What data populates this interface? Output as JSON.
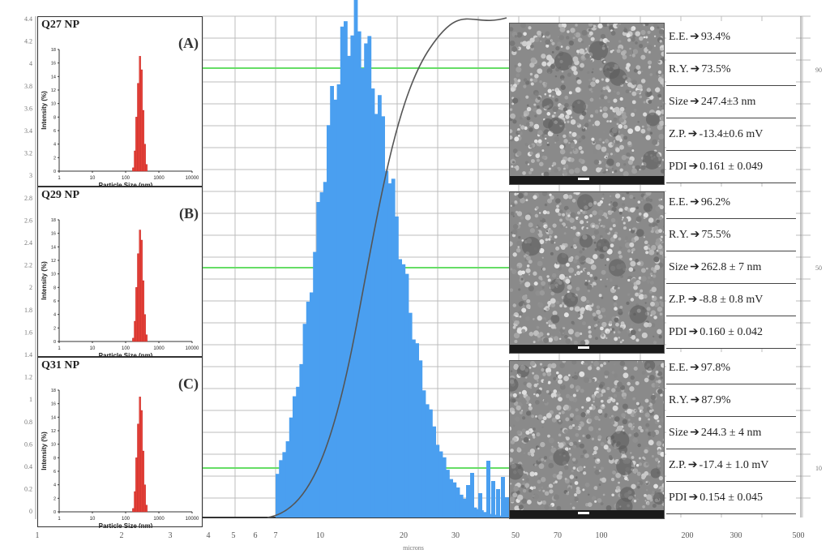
{
  "background_chart": {
    "type": "bar",
    "xlabel": "microns",
    "x_ticks": [
      "4",
      "5",
      "6",
      "7",
      "10",
      "20",
      "30",
      "50",
      "70",
      "100",
      "200",
      "300",
      "500"
    ],
    "left_axis_ticks": [
      "4.4",
      "4.2",
      "4",
      "3.8",
      "3.6",
      "3.4",
      "3.2",
      "3",
      "2.8",
      "2.6",
      "2.4",
      "2.2",
      "2",
      "1.8",
      "1.6",
      "1.4",
      "1.2",
      "1",
      "0.8",
      "0.6",
      "0.4",
      "0.2",
      "0"
    ],
    "right_axis_ticks": [
      "90",
      "50",
      "10"
    ],
    "bottom_left_ticks": [
      "1",
      "2",
      "3"
    ],
    "colors": {
      "bars": "#4a9ff0",
      "cumulative": "#555555",
      "threshold": "#66dd66",
      "grid": "#bcbcbc"
    }
  },
  "chart_data": [
    {
      "type": "bar",
      "title": "Q27 NP",
      "panel_label": "(A)",
      "xlabel": "Particle Size (nm)",
      "ylabel": "Intensity (%)",
      "x_scale": "log",
      "x_ticks": [
        "1",
        "10",
        "100",
        "1000",
        "10000"
      ],
      "y_ticks": [
        "0",
        "2",
        "4",
        "6",
        "8",
        "10",
        "12",
        "14",
        "16",
        "18"
      ],
      "ylim": [
        0,
        18
      ],
      "sizes_nm": [
        160,
        180,
        200,
        225,
        255,
        285,
        320,
        360,
        400
      ],
      "values": [
        0.5,
        3,
        8,
        13,
        17,
        15,
        9,
        4,
        1
      ],
      "color": "#e8443a"
    },
    {
      "type": "bar",
      "title": "Q29 NP",
      "panel_label": "(B)",
      "xlabel": "Particle Size (nm)",
      "ylabel": "Intensity (%)",
      "x_scale": "log",
      "x_ticks": [
        "1",
        "10",
        "100",
        "1000",
        "10000"
      ],
      "y_ticks": [
        "0",
        "2",
        "4",
        "6",
        "8",
        "10",
        "12",
        "14",
        "16",
        "18"
      ],
      "ylim": [
        0,
        18
      ],
      "sizes_nm": [
        160,
        180,
        200,
        225,
        255,
        285,
        320,
        360,
        400
      ],
      "values": [
        0.5,
        3,
        8,
        13,
        16.5,
        15,
        9,
        4,
        1
      ],
      "color": "#e8443a"
    },
    {
      "type": "bar",
      "title": "Q31 NP",
      "panel_label": "(C)",
      "xlabel": "Particle Size (nm)",
      "ylabel": "Intensity (%)",
      "x_scale": "log",
      "x_ticks": [
        "1",
        "10",
        "100",
        "1000",
        "10000"
      ],
      "y_ticks": [
        "0",
        "2",
        "4",
        "6",
        "8",
        "10",
        "12",
        "14",
        "16",
        "18"
      ],
      "ylim": [
        0,
        18
      ],
      "sizes_nm": [
        160,
        180,
        200,
        225,
        255,
        285,
        320,
        360,
        400
      ],
      "values": [
        0.5,
        3,
        8,
        13,
        17,
        15,
        9,
        4,
        1
      ],
      "color": "#e8443a"
    }
  ],
  "properties": [
    {
      "label": "E.E.",
      "value": "93.4%"
    },
    {
      "label": "R.Y.",
      "value": "73.5%"
    },
    {
      "label": "Size",
      "value": "247.4±3 nm"
    },
    {
      "label": "Z.P.",
      "value": "-13.4±0.6 mV"
    },
    {
      "label": "PDI",
      "value": "0.161 ± 0.049"
    },
    {
      "label": "E.E.",
      "value": "96.2%"
    },
    {
      "label": "R.Y.",
      "value": "75.5%"
    },
    {
      "label": "Size",
      "value": "262.8 ± 7 nm"
    },
    {
      "label": "Z.P.",
      "value": "-8.8 ± 0.8 mV"
    },
    {
      "label": "PDI",
      "value": "0.160 ± 0.042"
    },
    {
      "label": "E.E.",
      "value": "97.8%"
    },
    {
      "label": "R.Y.",
      "value": "87.9%"
    },
    {
      "label": "Size",
      "value": "244.3 ± 4 nm"
    },
    {
      "label": "Z.P.",
      "value": "-17.4 ± 1.0 mV"
    },
    {
      "label": "PDI",
      "value": "0.154 ± 0.045"
    }
  ],
  "arrow_glyph": "➔",
  "sem_images": [
    "sem-image-q27",
    "sem-image-q29",
    "sem-image-q31"
  ]
}
